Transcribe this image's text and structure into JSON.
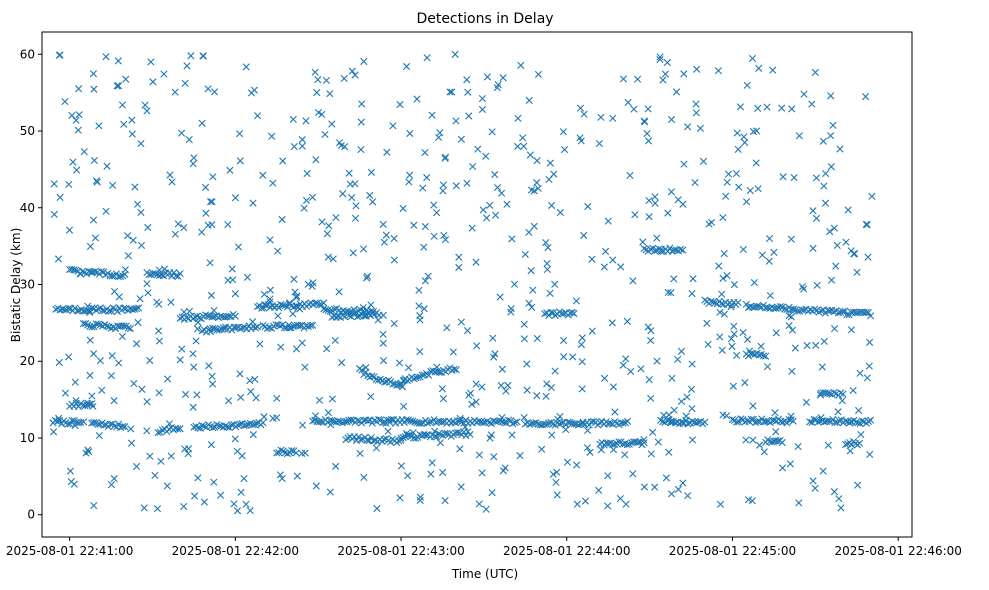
{
  "chart_data": {
    "type": "scatter",
    "title": "Detections in Delay",
    "xlabel": "Time (UTC)",
    "ylabel": "Bistatic Delay (km)",
    "x_start": "2025-08-01 22:40:54",
    "x_end": "2025-08-01 22:45:51",
    "xlim": [
      "2025-08-01 22:40:50",
      "2025-08-01 22:46:05"
    ],
    "ylim": [
      -2.9,
      62.9
    ],
    "x_ticks": [
      "2025-08-01 22:41:00",
      "2025-08-01 22:42:00",
      "2025-08-01 22:43:00",
      "2025-08-01 22:44:00",
      "2025-08-01 22:45:00",
      "2025-08-01 22:46:00"
    ],
    "y_ticks": [
      "0",
      "10",
      "20",
      "30",
      "40",
      "50",
      "60"
    ],
    "grid": false,
    "marker": "x",
    "color": "#1f77b4",
    "series": [
      {
        "name": "",
        "tracks": [
          {
            "x": [
              "22:40:54",
              "22:41:04"
            ],
            "y": [
              12.1,
              12.0
            ]
          },
          {
            "x": [
              "22:41:08",
              "22:41:20"
            ],
            "y": [
              11.9,
              11.5
            ]
          },
          {
            "x": [
              "22:41:32",
              "22:41:40"
            ],
            "y": [
              10.9,
              11.3
            ]
          },
          {
            "x": [
              "22:41:45",
              "22:42:10"
            ],
            "y": [
              11.4,
              11.8
            ]
          },
          {
            "x": [
              "22:42:15",
              "22:42:22"
            ],
            "y": [
              8.2,
              8.2
            ]
          },
          {
            "x": [
              "22:42:28",
              "22:43:42"
            ],
            "y": [
              12.2,
              12.1
            ]
          },
          {
            "x": [
              "22:42:40",
              "22:43:00"
            ],
            "y": [
              10.0,
              9.6
            ]
          },
          {
            "x": [
              "22:43:00",
              "22:43:25"
            ],
            "y": [
              10.1,
              10.6
            ]
          },
          {
            "x": [
              "22:43:45",
              "22:44:22"
            ],
            "y": [
              11.8,
              12.0
            ]
          },
          {
            "x": [
              "22:44:12",
              "22:44:28"
            ],
            "y": [
              9.3,
              9.3
            ]
          },
          {
            "x": [
              "22:44:34",
              "22:44:50"
            ],
            "y": [
              12.2,
              12.0
            ]
          },
          {
            "x": [
              "22:45:00",
              "22:45:22"
            ],
            "y": [
              12.3,
              12.2
            ]
          },
          {
            "x": [
              "22:45:28",
              "22:45:50"
            ],
            "y": [
              12.2,
              12.1
            ]
          },
          {
            "x": [
              "22:45:12",
              "22:45:18"
            ],
            "y": [
              9.6,
              9.6
            ]
          },
          {
            "x": [
              "22:45:41",
              "22:45:46"
            ],
            "y": [
              9.3,
              9.3
            ]
          },
          {
            "x": [
              "22:40:55",
              "22:41:25"
            ],
            "y": [
              26.8,
              26.7
            ]
          },
          {
            "x": [
              "22:41:05",
              "22:41:22"
            ],
            "y": [
              24.8,
              24.3
            ]
          },
          {
            "x": [
              "22:41:40",
              "22:42:00"
            ],
            "y": [
              25.6,
              26.0
            ]
          },
          {
            "x": [
              "22:41:48",
              "22:42:08"
            ],
            "y": [
              24.0,
              24.5
            ]
          },
          {
            "x": [
              "22:42:10",
              "22:42:28"
            ],
            "y": [
              24.5,
              24.6
            ]
          },
          {
            "x": [
              "22:42:08",
              "22:42:32"
            ],
            "y": [
              27.1,
              27.4
            ]
          },
          {
            "x": [
              "22:42:32",
              "22:42:50"
            ],
            "y": [
              26.8,
              26.4
            ]
          },
          {
            "x": [
              "22:42:35",
              "22:42:52"
            ],
            "y": [
              25.8,
              26.2
            ]
          },
          {
            "x": [
              "22:42:45",
              "22:43:00"
            ],
            "y": [
              19.2,
              17.0
            ]
          },
          {
            "x": [
              "22:43:00",
              "22:43:20"
            ],
            "y": [
              17.0,
              19.0
            ]
          },
          {
            "x": [
              "22:43:52",
              "22:44:02"
            ],
            "y": [
              26.2,
              26.2
            ]
          },
          {
            "x": [
              "22:44:28",
              "22:44:42"
            ],
            "y": [
              34.5,
              34.5
            ]
          },
          {
            "x": [
              "22:44:50",
              "22:45:02"
            ],
            "y": [
              27.8,
              27.5
            ]
          },
          {
            "x": [
              "22:45:05",
              "22:45:22"
            ],
            "y": [
              27.2,
              26.8
            ]
          },
          {
            "x": [
              "22:45:22",
              "22:45:50"
            ],
            "y": [
              26.8,
              26.1
            ]
          },
          {
            "x": [
              "22:45:05",
              "22:45:12"
            ],
            "y": [
              20.8,
              20.8
            ]
          },
          {
            "x": [
              "22:41:00",
              "22:41:20"
            ],
            "y": [
              31.8,
              31.2
            ]
          },
          {
            "x": [
              "22:41:28",
              "22:41:40"
            ],
            "y": [
              31.4,
              31.3
            ]
          },
          {
            "x": [
              "22:41:00",
              "22:41:08"
            ],
            "y": [
              14.3,
              14.3
            ]
          },
          {
            "x": [
              "22:45:32",
              "22:45:40"
            ],
            "y": [
              15.8,
              15.8
            ]
          }
        ],
        "random_points": 800,
        "random_seed": 7,
        "random_y_range": [
          0.5,
          60.0
        ]
      }
    ]
  }
}
